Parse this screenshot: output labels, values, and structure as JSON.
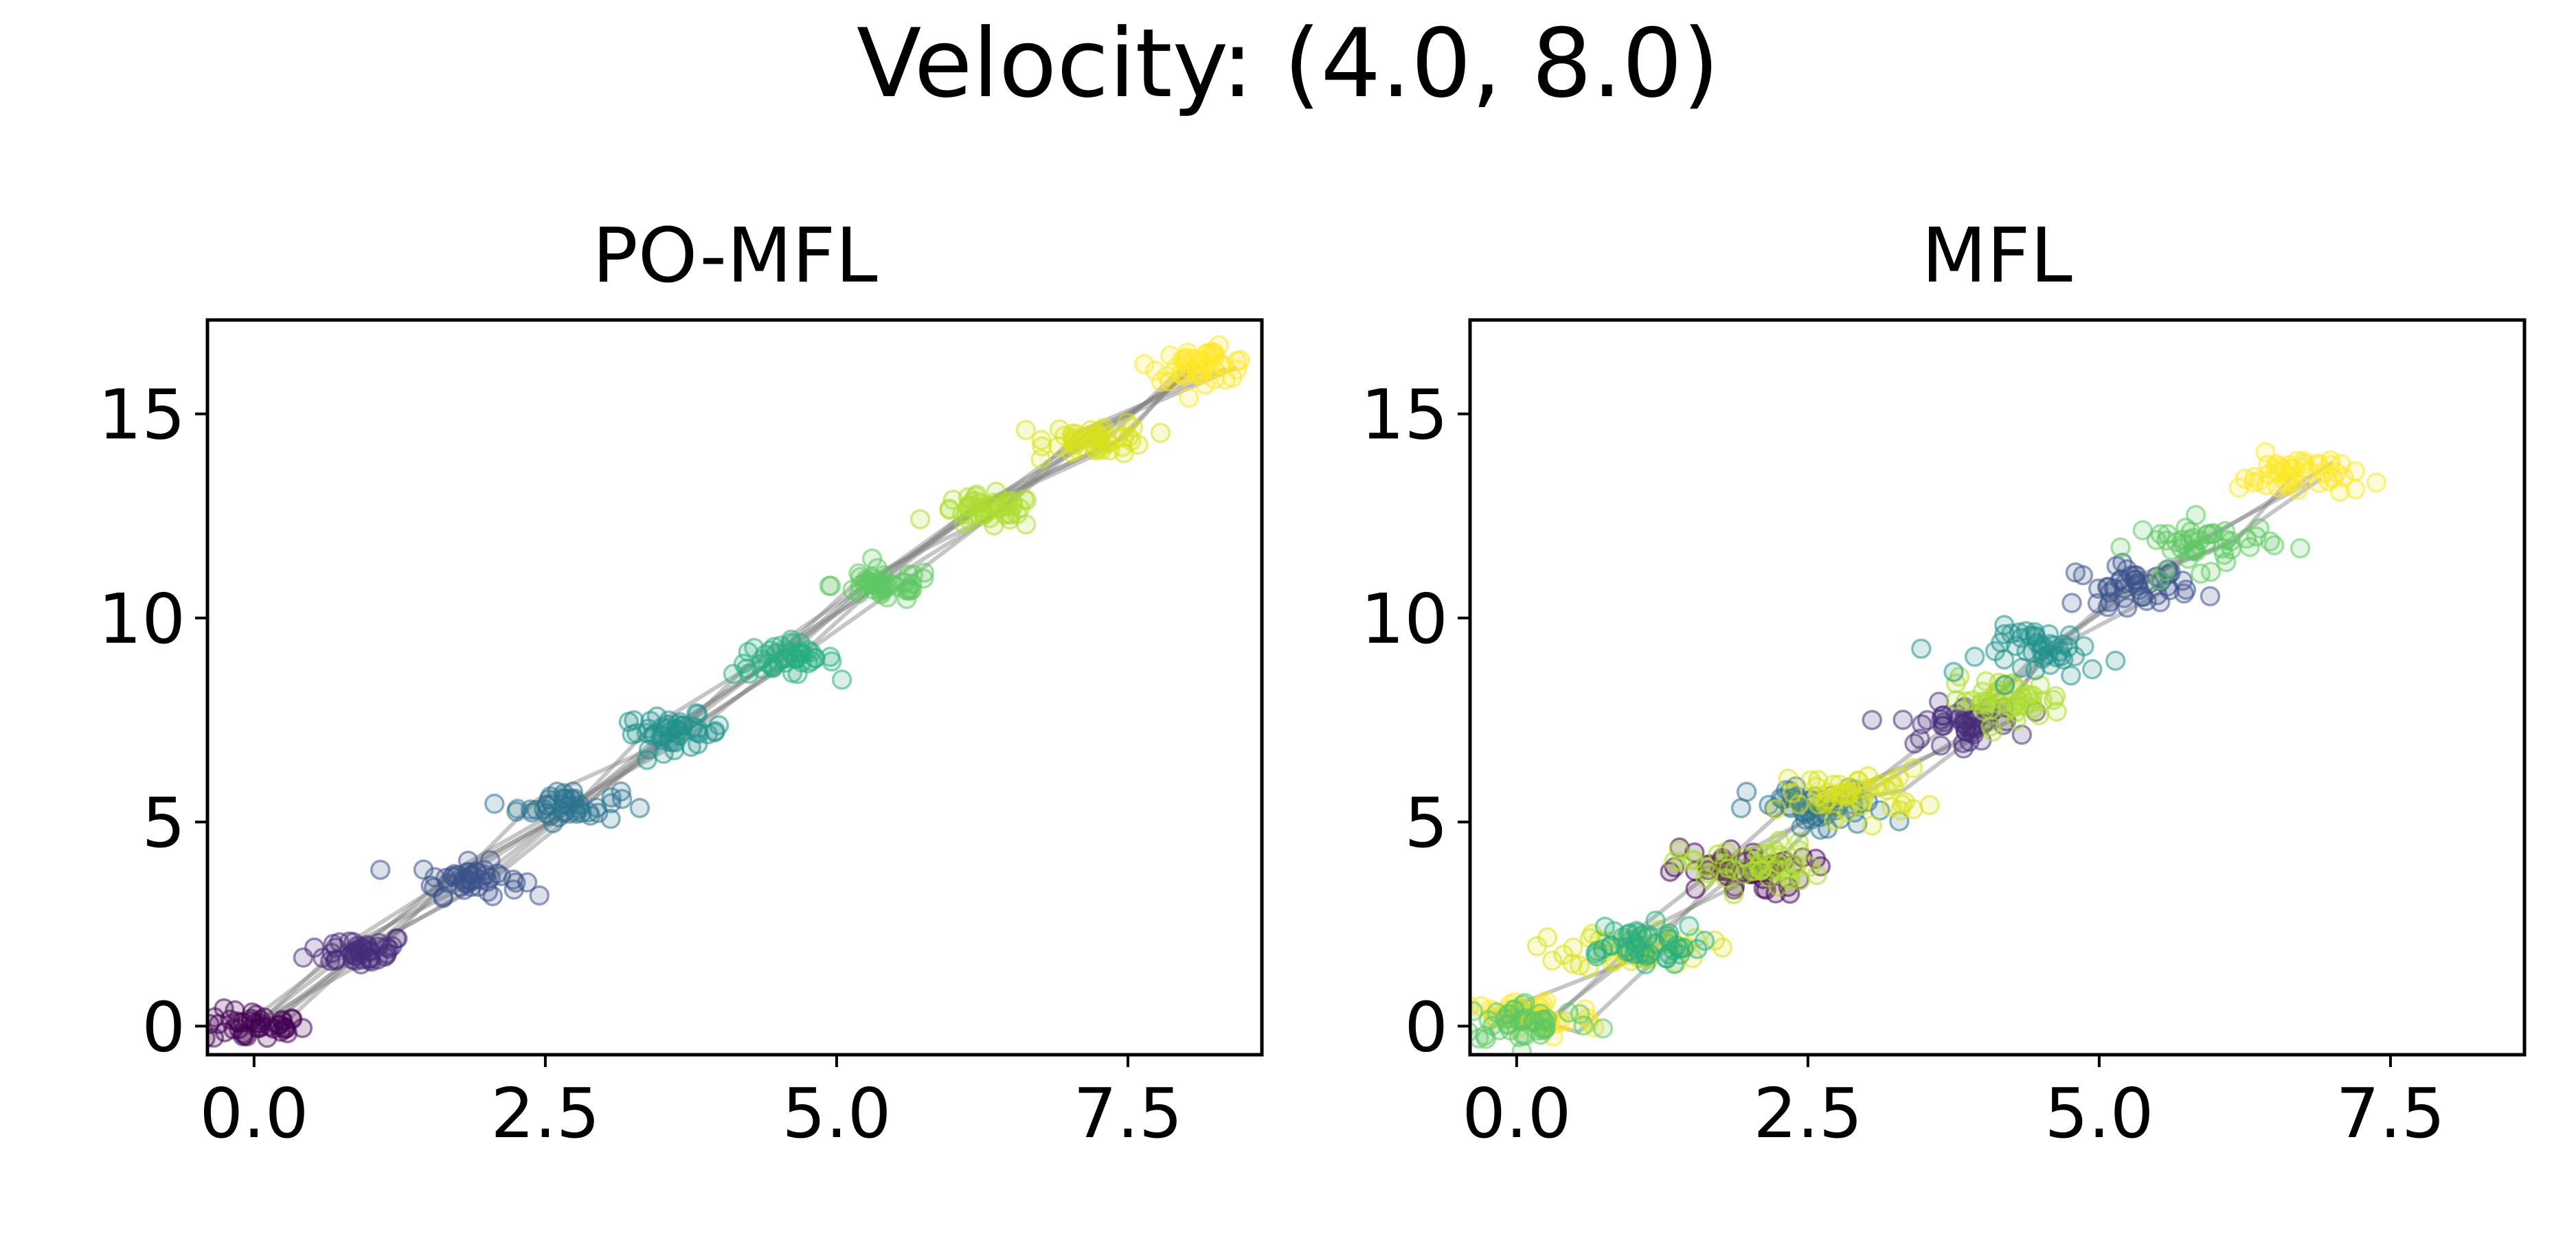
{
  "chart_data": {
    "suptitle": "Velocity: (4.0, 8.0)",
    "panels": [
      {
        "title": "PO-MFL",
        "type": "scatter",
        "xlim": [
          -0.4,
          8.65
        ],
        "ylim": [
          -0.7,
          17.3
        ],
        "xticks": [
          0.0,
          2.5,
          5.0,
          7.5
        ],
        "xtick_labels": [
          "0.0",
          "2.5",
          "5.0",
          "7.5"
        ],
        "yticks": [
          0,
          5,
          10,
          15
        ],
        "ytick_labels": [
          "0",
          "5",
          "10",
          "15"
        ],
        "clusters": [
          {
            "t": 0,
            "center": [
              0.0,
              0.0
            ],
            "spread": [
              0.22,
              0.2
            ],
            "color": "#440154"
          },
          {
            "t": 1,
            "center": [
              0.9,
              1.85
            ],
            "spread": [
              0.22,
              0.2
            ],
            "color": "#472c7a"
          },
          {
            "t": 2,
            "center": [
              1.85,
              3.6
            ],
            "spread": [
              0.22,
              0.2
            ],
            "color": "#3b528b"
          },
          {
            "t": 3,
            "center": [
              2.7,
              5.4
            ],
            "spread": [
              0.22,
              0.2
            ],
            "color": "#2c728e"
          },
          {
            "t": 4,
            "center": [
              3.6,
              7.2
            ],
            "spread": [
              0.22,
              0.2
            ],
            "color": "#21918c"
          },
          {
            "t": 5,
            "center": [
              4.55,
              9.0
            ],
            "spread": [
              0.22,
              0.2
            ],
            "color": "#28ae80"
          },
          {
            "t": 6,
            "center": [
              5.4,
              10.8
            ],
            "spread": [
              0.22,
              0.2
            ],
            "color": "#5ec962"
          },
          {
            "t": 7,
            "center": [
              6.3,
              12.6
            ],
            "spread": [
              0.22,
              0.2
            ],
            "color": "#addc30"
          },
          {
            "t": 8,
            "center": [
              7.25,
              14.4
            ],
            "spread": [
              0.22,
              0.2
            ],
            "color": "#d8e219"
          },
          {
            "t": 9,
            "center": [
              8.15,
              16.2
            ],
            "spread": [
              0.22,
              0.2
            ],
            "color": "#fde725"
          }
        ],
        "trajectory_count": 8
      },
      {
        "title": "MFL",
        "type": "scatter",
        "xlim": [
          -0.4,
          8.65
        ],
        "ylim": [
          -0.7,
          17.3
        ],
        "xticks": [
          0.0,
          2.5,
          5.0,
          7.5
        ],
        "xtick_labels": [
          "0.0",
          "2.5",
          "5.0",
          "7.5"
        ],
        "yticks": [
          0,
          5,
          10,
          15
        ],
        "ytick_labels": [
          "0",
          "5",
          "10",
          "15"
        ],
        "clusters": [
          {
            "t": 0,
            "center": [
              0.1,
              0.2
            ],
            "spread": [
              0.3,
              0.25
            ],
            "color": "#fde725"
          },
          {
            "t": 1,
            "center": [
              0.1,
              0.1
            ],
            "spread": [
              0.3,
              0.25
            ],
            "color": "#5ec962"
          },
          {
            "t": 2,
            "center": [
              1.05,
              1.9
            ],
            "spread": [
              0.3,
              0.25
            ],
            "color": "#d8e219"
          },
          {
            "t": 3,
            "center": [
              1.0,
              2.0
            ],
            "spread": [
              0.3,
              0.25
            ],
            "color": "#28ae80"
          },
          {
            "t": 4,
            "center": [
              1.9,
              3.8
            ],
            "spread": [
              0.3,
              0.3
            ],
            "color": "#440154"
          },
          {
            "t": 5,
            "center": [
              2.0,
              3.9
            ],
            "spread": [
              0.3,
              0.3
            ],
            "color": "#addc30"
          },
          {
            "t": 6,
            "center": [
              2.6,
              5.3
            ],
            "spread": [
              0.3,
              0.3
            ],
            "color": "#2c728e"
          },
          {
            "t": 7,
            "center": [
              2.9,
              5.7
            ],
            "spread": [
              0.3,
              0.3
            ],
            "color": "#d8e219"
          },
          {
            "t": 8,
            "center": [
              3.8,
              7.4
            ],
            "spread": [
              0.25,
              0.25
            ],
            "color": "#472c7a"
          },
          {
            "t": 9,
            "center": [
              4.2,
              8.0
            ],
            "spread": [
              0.25,
              0.25
            ],
            "color": "#addc30"
          },
          {
            "t": 10,
            "center": [
              4.6,
              9.2
            ],
            "spread": [
              0.3,
              0.3
            ],
            "color": "#21918c"
          },
          {
            "t": 11,
            "center": [
              5.3,
              10.8
            ],
            "spread": [
              0.25,
              0.25
            ],
            "color": "#3b528b"
          },
          {
            "t": 12,
            "center": [
              5.9,
              11.8
            ],
            "spread": [
              0.3,
              0.3
            ],
            "color": "#5ec962"
          },
          {
            "t": 13,
            "center": [
              6.7,
              13.5
            ],
            "spread": [
              0.25,
              0.25
            ],
            "color": "#fde725"
          }
        ],
        "trajectory_count": 4
      }
    ]
  }
}
